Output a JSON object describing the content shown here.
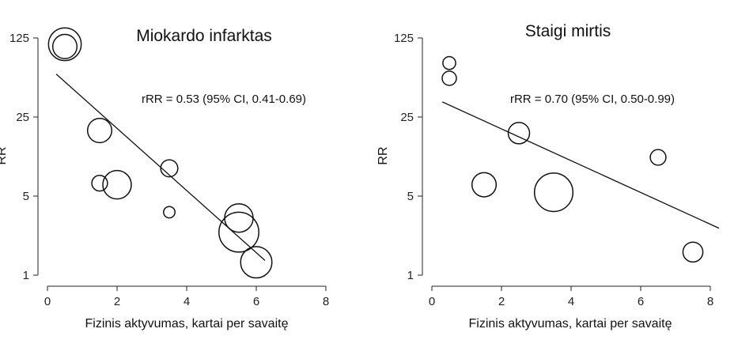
{
  "chart_data": [
    {
      "type": "scatter",
      "title": "Miokardo infarktas",
      "annotation": "rRR = 0.53 (95% CI, 0.41-0.69)",
      "xlabel": "Fizinis aktyvumas, kartai per savaitę",
      "ylabel": "RR",
      "xlim": [
        0,
        8
      ],
      "ylim": [
        1,
        125
      ],
      "y_scale": "log",
      "x_ticks": [
        "0",
        "2",
        "4",
        "6",
        "8"
      ],
      "y_ticks": [
        "1",
        "5",
        "25",
        "125"
      ],
      "bubble_points": [
        {
          "x": 0.5,
          "y": 110,
          "weight": 1.15
        },
        {
          "x": 0.5,
          "y": 105,
          "weight": 0.85
        },
        {
          "x": 1.5,
          "y": 19,
          "weight": 0.85
        },
        {
          "x": 1.5,
          "y": 6.5,
          "weight": 0.55
        },
        {
          "x": 2.0,
          "y": 6.3,
          "weight": 1.0
        },
        {
          "x": 3.5,
          "y": 8.8,
          "weight": 0.6
        },
        {
          "x": 3.5,
          "y": 3.6,
          "weight": 0.4
        },
        {
          "x": 5.5,
          "y": 3.2,
          "weight": 1.0
        },
        {
          "x": 5.5,
          "y": 2.4,
          "weight": 1.4
        },
        {
          "x": 6.0,
          "y": 1.3,
          "weight": 1.1
        }
      ],
      "trend_line": {
        "x": [
          0.25,
          6.25
        ],
        "y": [
          60,
          1.35
        ]
      }
    },
    {
      "type": "scatter",
      "title": "Staigi mirtis",
      "annotation": "rRR = 0.70 (95% CI, 0.50-0.99)",
      "xlabel": "Fizinis aktyvumas, kartai per savaitę",
      "ylabel": "RR",
      "xlim": [
        0,
        8
      ],
      "ylim": [
        1,
        125
      ],
      "y_scale": "log",
      "x_ticks": [
        "0",
        "2",
        "4",
        "6",
        "8"
      ],
      "y_ticks": [
        "1",
        "5",
        "25",
        "125"
      ],
      "bubble_points": [
        {
          "x": 0.5,
          "y": 75,
          "weight": 0.45
        },
        {
          "x": 0.5,
          "y": 55,
          "weight": 0.5
        },
        {
          "x": 2.5,
          "y": 18,
          "weight": 0.75
        },
        {
          "x": 1.5,
          "y": 6.3,
          "weight": 0.85
        },
        {
          "x": 3.5,
          "y": 5.4,
          "weight": 1.35
        },
        {
          "x": 6.5,
          "y": 11,
          "weight": 0.55
        },
        {
          "x": 7.5,
          "y": 1.6,
          "weight": 0.7
        }
      ],
      "trend_line": {
        "x": [
          0.3,
          8.25
        ],
        "y": [
          34,
          2.6
        ]
      }
    }
  ]
}
